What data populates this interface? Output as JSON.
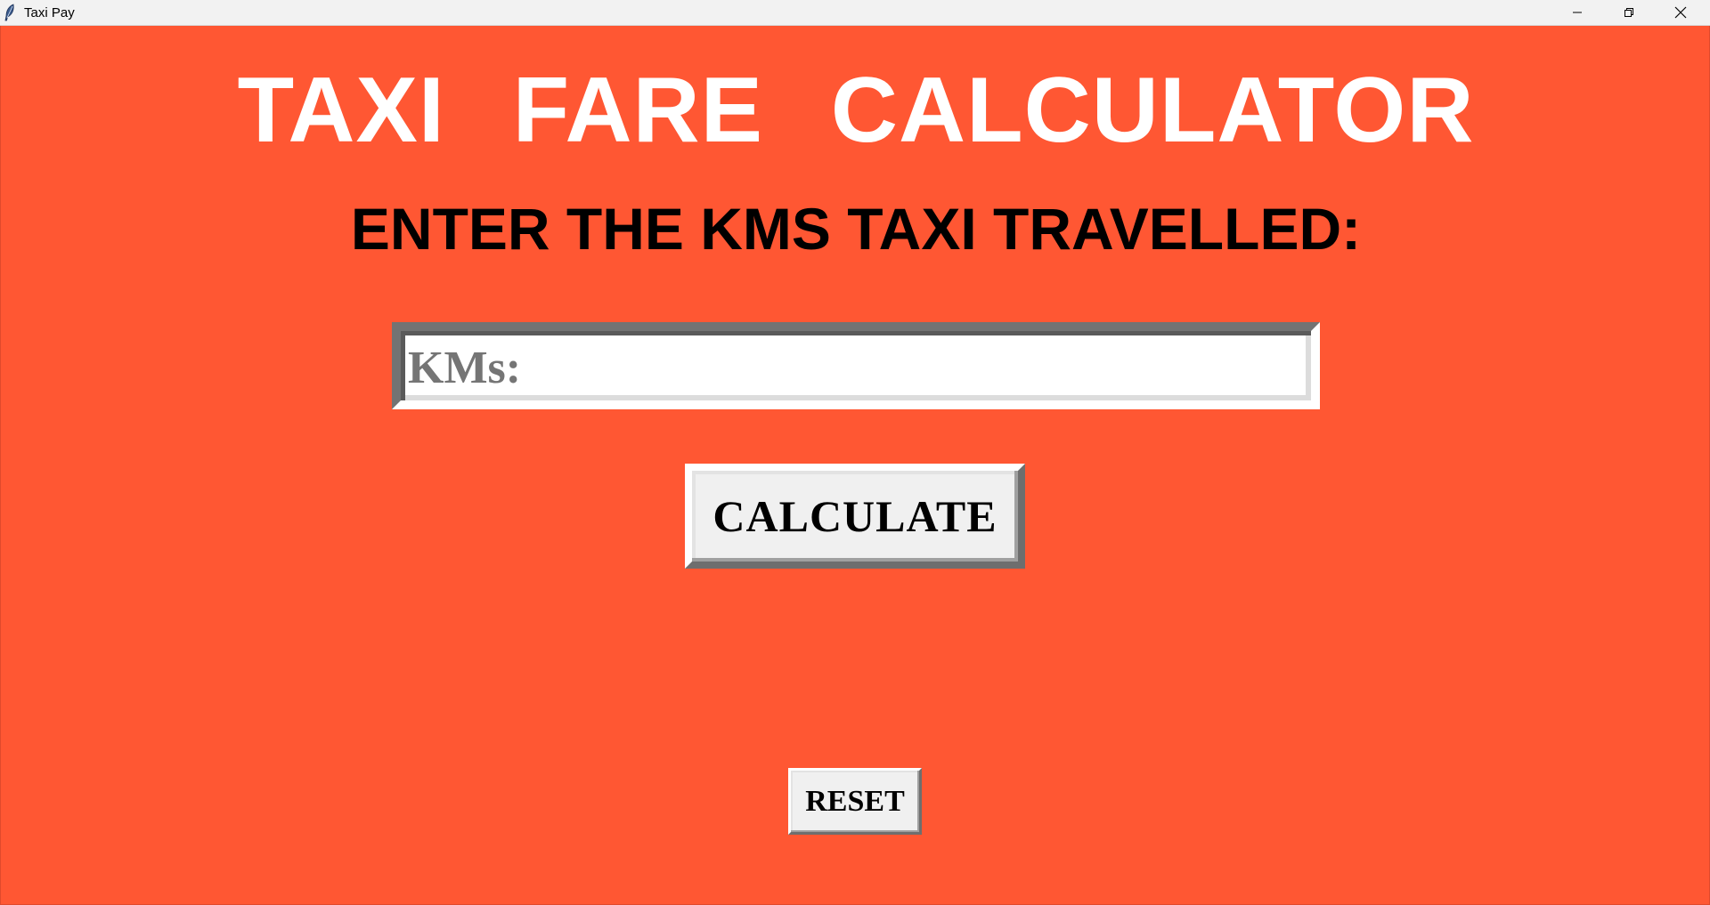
{
  "window": {
    "title": "Taxi Pay",
    "app_icon": "feather-icon",
    "controls": {
      "minimize_icon": "minimize-icon",
      "restore_icon": "restore-icon",
      "close_icon": "close-icon"
    }
  },
  "theme": {
    "background": "#ff5733",
    "title_color": "#ffffff",
    "text_color": "#000000",
    "button_face": "#f0f0f0"
  },
  "header": {
    "title": "TAXI FARE CALCULATOR",
    "prompt": "ENTER THE KMS TAXI TRAVELLED:"
  },
  "form": {
    "kms_input": {
      "value": "",
      "placeholder": "KMs:"
    },
    "calculate_label": "CALCULATE",
    "reset_label": "RESET"
  }
}
